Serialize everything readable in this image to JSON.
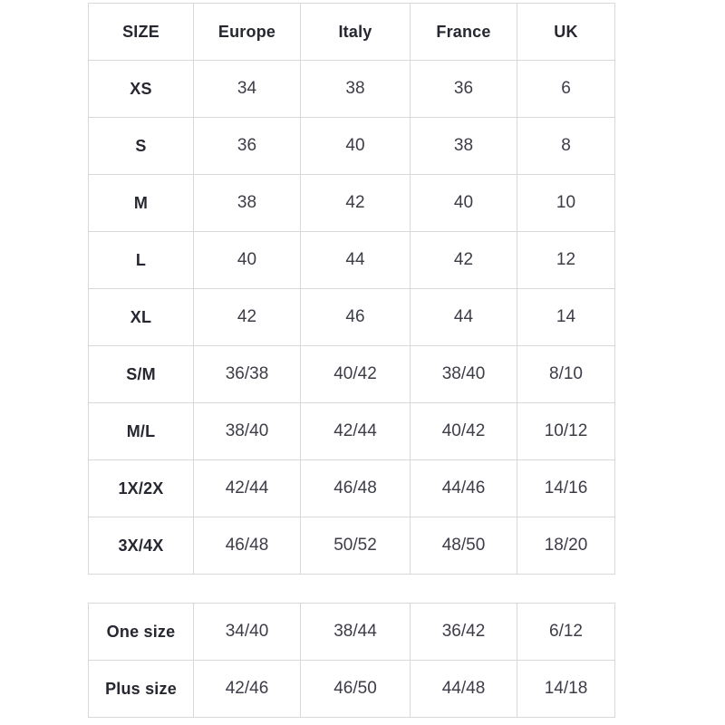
{
  "size_chart": {
    "headers": [
      "SIZE",
      "Europe",
      "Italy",
      "France",
      "UK"
    ],
    "rows": [
      {
        "label": "XS",
        "values": [
          "34",
          "38",
          "36",
          "6"
        ]
      },
      {
        "label": "S",
        "values": [
          "36",
          "40",
          "38",
          "8"
        ]
      },
      {
        "label": "M",
        "values": [
          "38",
          "42",
          "40",
          "10"
        ]
      },
      {
        "label": "L",
        "values": [
          "40",
          "44",
          "42",
          "12"
        ]
      },
      {
        "label": "XL",
        "values": [
          "42",
          "46",
          "44",
          "14"
        ]
      },
      {
        "label": "S/M",
        "values": [
          "36/38",
          "40/42",
          "38/40",
          "8/10"
        ]
      },
      {
        "label": "M/L",
        "values": [
          "38/40",
          "42/44",
          "40/42",
          "10/12"
        ]
      },
      {
        "label": "1X/2X",
        "values": [
          "42/44",
          "46/48",
          "44/46",
          "14/16"
        ]
      },
      {
        "label": "3X/4X",
        "values": [
          "46/48",
          "50/52",
          "48/50",
          "18/20"
        ]
      }
    ]
  },
  "extra_sizes": {
    "rows": [
      {
        "label": "One size",
        "values": [
          "34/40",
          "38/44",
          "36/42",
          "6/12"
        ]
      },
      {
        "label": "Plus size",
        "values": [
          "42/46",
          "46/50",
          "44/48",
          "14/18"
        ]
      }
    ]
  },
  "colors": {
    "border": "#d8d8d8",
    "heading_text": "#262730",
    "value_text": "#3c3d47",
    "background": "#ffffff"
  }
}
